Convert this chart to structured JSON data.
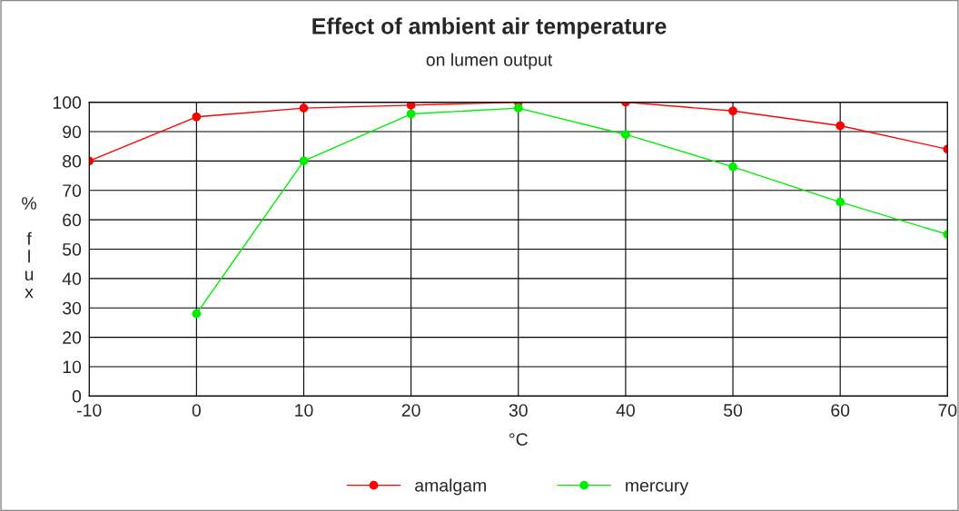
{
  "chart_data": {
    "type": "line",
    "title": "Effect of ambient air temperature",
    "subtitle": "on lumen output",
    "xlabel": "°C",
    "ylabel": "% flux",
    "x": [
      -10,
      0,
      10,
      20,
      30,
      40,
      50,
      60,
      70
    ],
    "series": [
      {
        "name": "amalgam",
        "color": "#ff0000",
        "values": [
          80,
          95,
          98,
          99,
          100,
          100,
          97,
          92,
          84
        ]
      },
      {
        "name": "mercury",
        "color": "#00ee00",
        "values": [
          null,
          28,
          80,
          96,
          98,
          89,
          78,
          66,
          55
        ]
      }
    ],
    "xlim": [
      -10,
      70
    ],
    "xticks": [
      -10,
      0,
      10,
      20,
      30,
      40,
      50,
      60,
      70
    ],
    "ylim": [
      0,
      100
    ],
    "yticks": [
      0,
      10,
      20,
      30,
      40,
      50,
      60,
      70,
      80,
      90,
      100
    ],
    "grid": true,
    "legend": "bottom",
    "marker": "circle",
    "line_style": "solid"
  }
}
